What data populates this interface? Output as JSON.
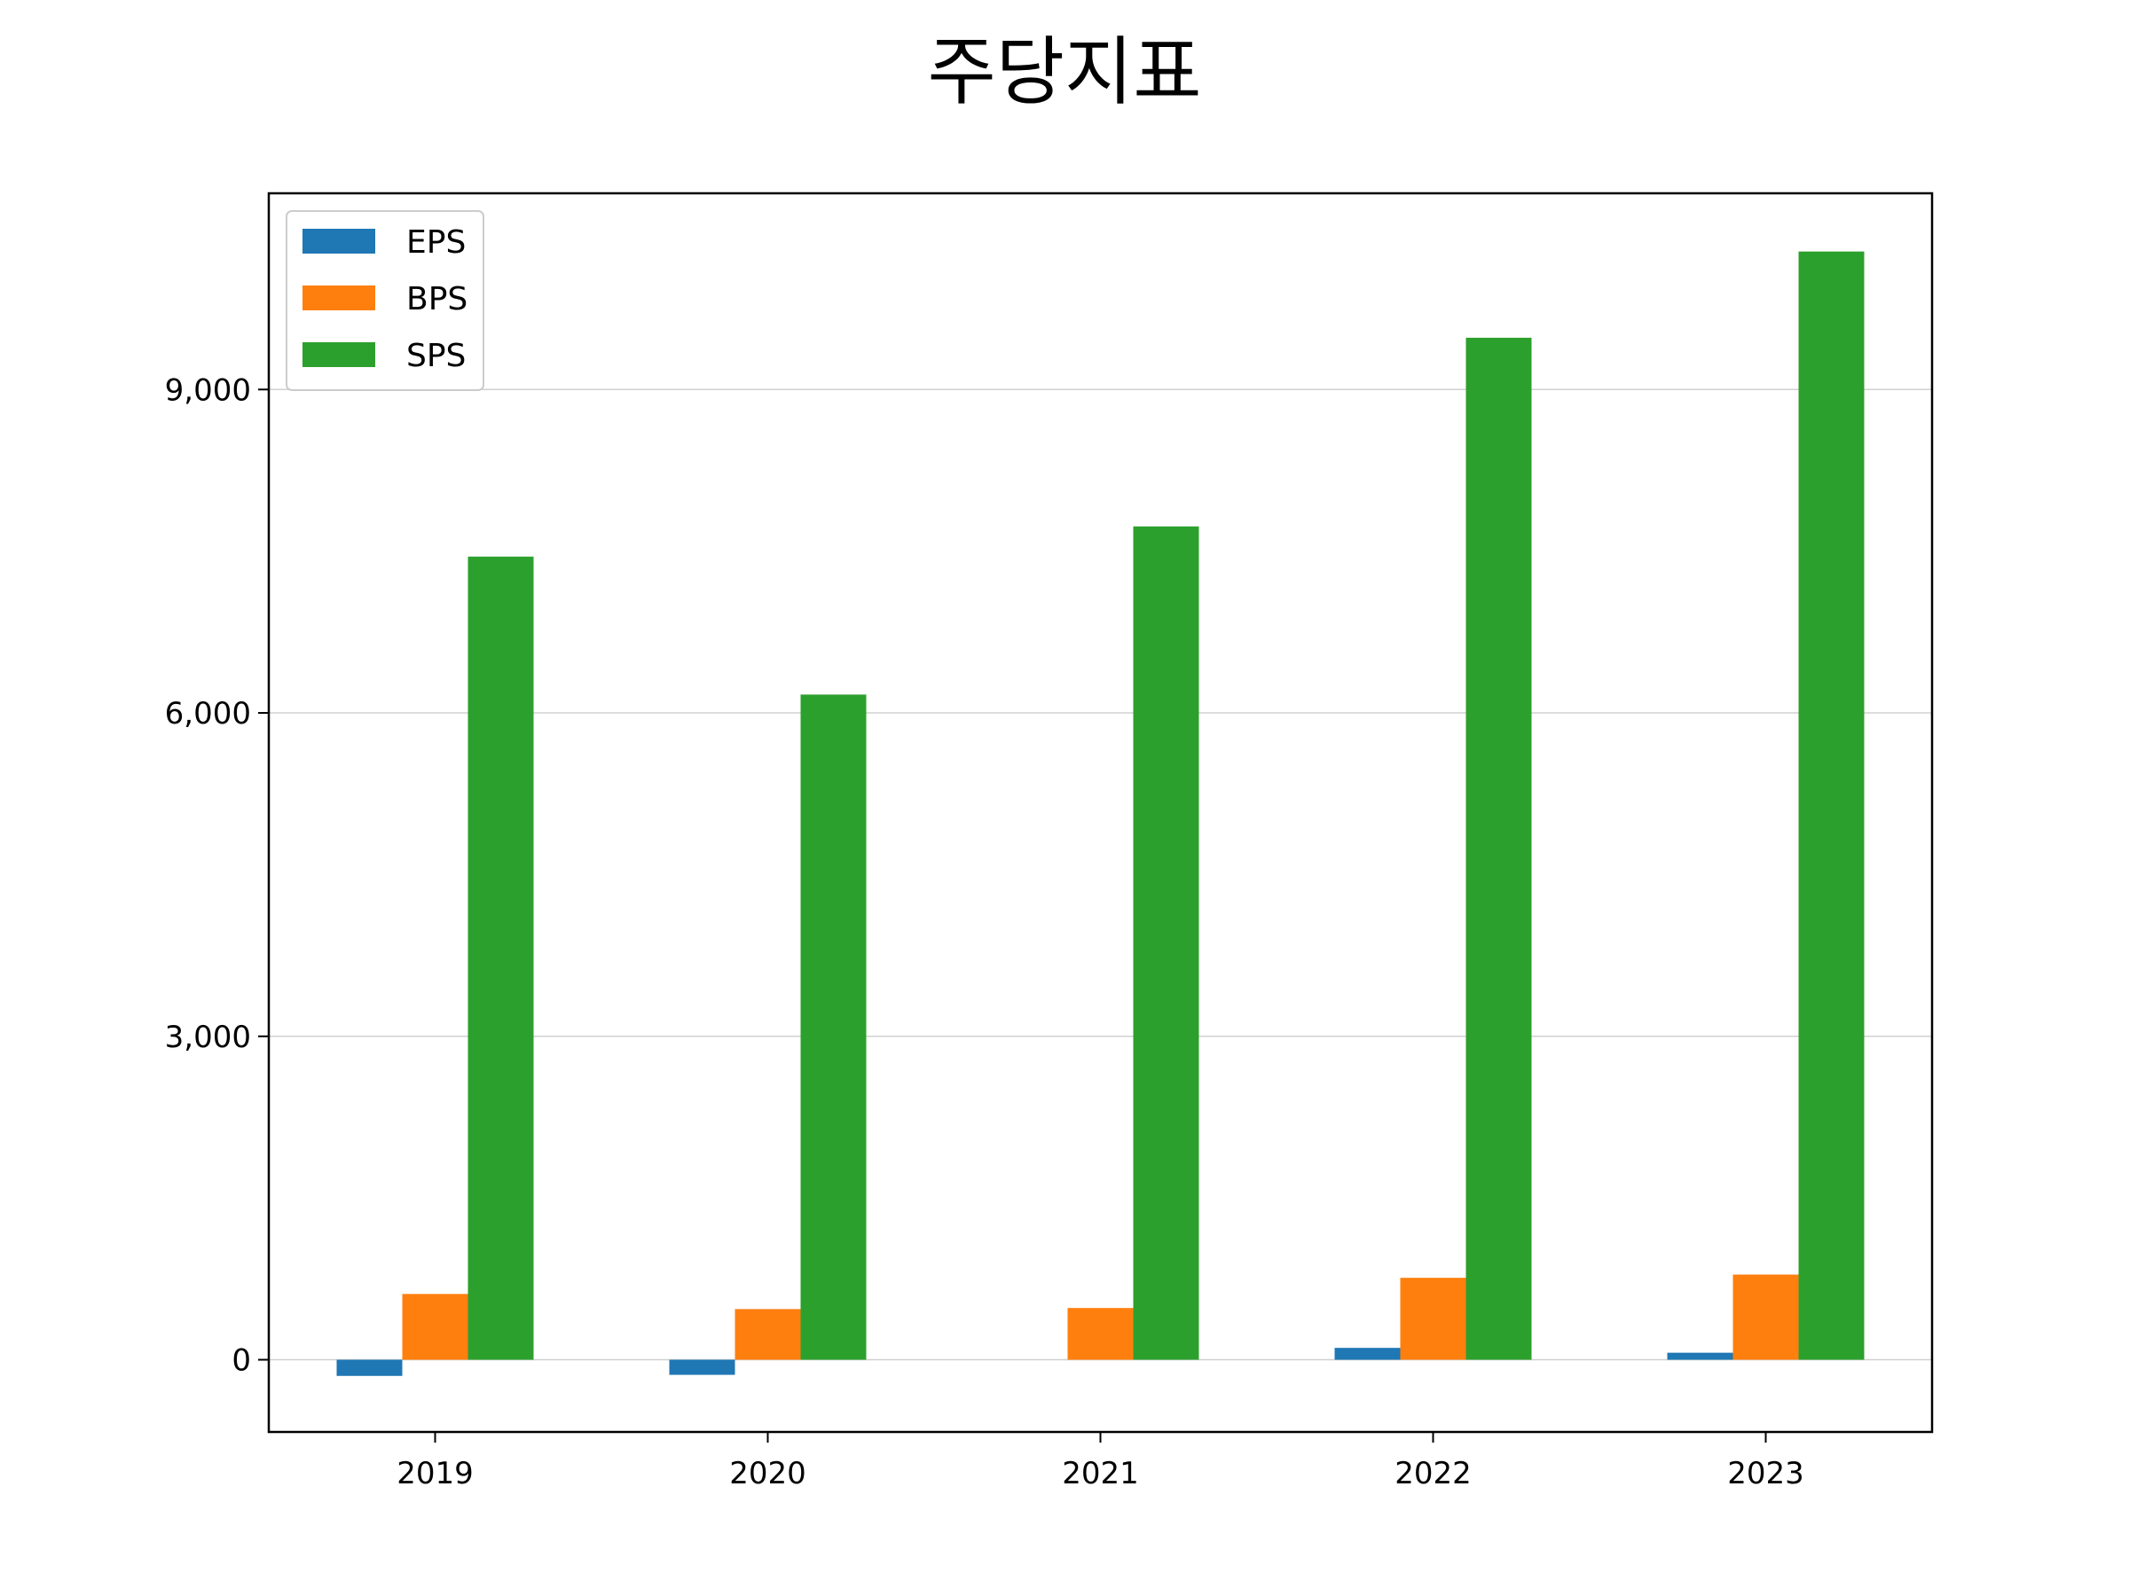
{
  "chart_data": {
    "type": "bar",
    "title": "주당지표",
    "categories": [
      "2019",
      "2020",
      "2021",
      "2022",
      "2023"
    ],
    "series": [
      {
        "name": "EPS",
        "color": "#1f77b4",
        "values": [
          -150,
          -140,
          0,
          110,
          65
        ]
      },
      {
        "name": "BPS",
        "color": "#ff7f0e",
        "values": [
          610,
          470,
          480,
          760,
          790
        ]
      },
      {
        "name": "SPS",
        "color": "#2ca02c",
        "values": [
          7450,
          6170,
          7730,
          9480,
          10280
        ]
      }
    ],
    "ylim": [
      -670,
      10820
    ],
    "yticks": [
      0,
      3000,
      6000,
      9000
    ],
    "ytick_labels": [
      "0",
      "3,000",
      "6,000",
      "9,000"
    ],
    "xlabel": "",
    "ylabel": "",
    "grid": "horizontal",
    "legend_position": "upper-left"
  }
}
